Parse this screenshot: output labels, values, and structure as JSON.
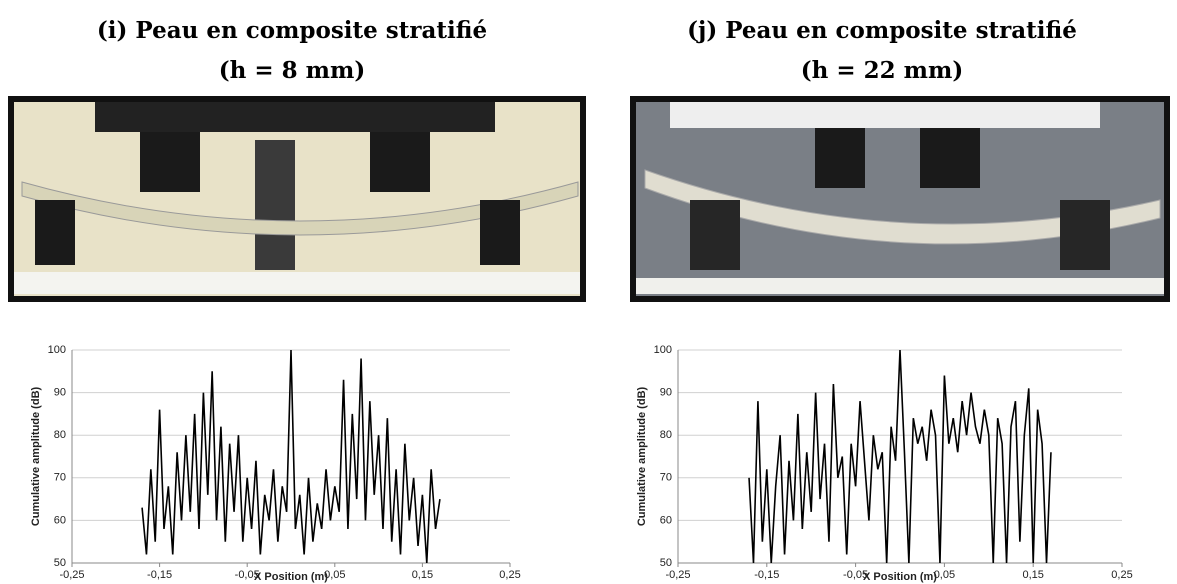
{
  "chart_data": [
    {
      "type": "line",
      "title": "(i) Peau en composite stratifié",
      "subtitle": "(h = 8 mm)",
      "x_label": "X Position (m)",
      "y_label": "Cumulative amplitude (dB)",
      "color": "#000000",
      "grid": true,
      "xlim": [
        -0.25,
        0.25
      ],
      "ylim": [
        50,
        100
      ],
      "xticks": [
        {
          "value": -0.25,
          "label": "-0,25"
        },
        {
          "value": -0.15,
          "label": "-0,15"
        },
        {
          "value": -0.05,
          "label": "-0,05"
        },
        {
          "value": 0.05,
          "label": "0,05"
        },
        {
          "value": 0.15,
          "label": "0,15"
        },
        {
          "value": 0.25,
          "label": "0,25"
        }
      ],
      "yticks": [
        50,
        60,
        70,
        80,
        90,
        100
      ],
      "x": [
        -0.17,
        -0.165,
        -0.16,
        -0.155,
        -0.15,
        -0.145,
        -0.14,
        -0.135,
        -0.13,
        -0.125,
        -0.12,
        -0.115,
        -0.11,
        -0.105,
        -0.1,
        -0.095,
        -0.09,
        -0.085,
        -0.08,
        -0.075,
        -0.07,
        -0.065,
        -0.06,
        -0.055,
        -0.05,
        -0.045,
        -0.04,
        -0.035,
        -0.03,
        -0.025,
        -0.02,
        -0.015,
        -0.01,
        -0.005,
        0,
        0.005,
        0.01,
        0.015,
        0.02,
        0.025,
        0.03,
        0.035,
        0.04,
        0.045,
        0.05,
        0.055,
        0.06,
        0.065,
        0.07,
        0.075,
        0.08,
        0.085,
        0.09,
        0.095,
        0.1,
        0.105,
        0.11,
        0.115,
        0.12,
        0.125,
        0.13,
        0.135,
        0.14,
        0.145,
        0.15,
        0.155,
        0.16,
        0.165,
        0.17
      ],
      "values": [
        63,
        52,
        72,
        55,
        86,
        58,
        68,
        52,
        76,
        60,
        80,
        62,
        85,
        58,
        90,
        66,
        95,
        60,
        82,
        55,
        78,
        62,
        80,
        55,
        70,
        58,
        74,
        52,
        66,
        60,
        72,
        55,
        68,
        62,
        100,
        58,
        66,
        52,
        70,
        55,
        64,
        58,
        72,
        60,
        68,
        62,
        93,
        58,
        85,
        65,
        98,
        60,
        88,
        66,
        80,
        58,
        84,
        55,
        72,
        52,
        78,
        60,
        70,
        54,
        66,
        50,
        72,
        58,
        65
      ]
    },
    {
      "type": "line",
      "title": "(j) Peau en composite stratifié",
      "subtitle": "(h = 22 mm)",
      "x_label": "X Position (m)",
      "y_label": "Cumulative amplitude (dB)",
      "color": "#000000",
      "grid": true,
      "xlim": [
        -0.25,
        0.25
      ],
      "ylim": [
        50,
        100
      ],
      "xticks": [
        {
          "value": -0.25,
          "label": "-0,25"
        },
        {
          "value": -0.15,
          "label": "-0,15"
        },
        {
          "value": -0.05,
          "label": "-0,05"
        },
        {
          "value": 0.05,
          "label": "0,05"
        },
        {
          "value": 0.15,
          "label": "0,15"
        },
        {
          "value": 0.25,
          "label": "0,25"
        }
      ],
      "yticks": [
        50,
        60,
        70,
        80,
        90,
        100
      ],
      "x": [
        -0.17,
        -0.165,
        -0.16,
        -0.155,
        -0.15,
        -0.145,
        -0.14,
        -0.135,
        -0.13,
        -0.125,
        -0.12,
        -0.115,
        -0.11,
        -0.105,
        -0.1,
        -0.095,
        -0.09,
        -0.085,
        -0.08,
        -0.075,
        -0.07,
        -0.065,
        -0.06,
        -0.055,
        -0.05,
        -0.045,
        -0.04,
        -0.035,
        -0.03,
        -0.025,
        -0.02,
        -0.015,
        -0.01,
        -0.005,
        0,
        0.005,
        0.01,
        0.015,
        0.02,
        0.025,
        0.03,
        0.035,
        0.04,
        0.045,
        0.05,
        0.055,
        0.06,
        0.065,
        0.07,
        0.075,
        0.08,
        0.085,
        0.09,
        0.095,
        0.1,
        0.105,
        0.11,
        0.115,
        0.12,
        0.125,
        0.13,
        0.135,
        0.14,
        0.145,
        0.15,
        0.155,
        0.16,
        0.165,
        0.17
      ],
      "values": [
        70,
        50,
        88,
        55,
        72,
        50,
        68,
        80,
        52,
        74,
        60,
        85,
        58,
        76,
        62,
        90,
        65,
        78,
        55,
        92,
        70,
        75,
        52,
        78,
        68,
        88,
        74,
        60,
        80,
        72,
        76,
        50,
        82,
        74,
        100,
        76,
        50,
        84,
        78,
        82,
        74,
        86,
        80,
        50,
        94,
        78,
        84,
        76,
        88,
        80,
        90,
        82,
        78,
        86,
        80,
        50,
        84,
        78,
        50,
        82,
        88,
        55,
        80,
        91,
        50,
        86,
        78,
        50,
        76
      ]
    }
  ]
}
